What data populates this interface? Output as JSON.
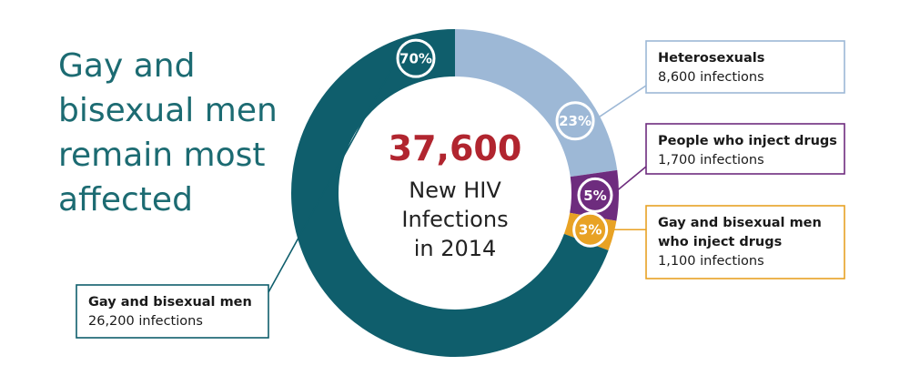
{
  "headline": [
    "Gay and",
    "bisexual men",
    "remain most",
    "affected"
  ],
  "chart_data": {
    "type": "pie",
    "center": {
      "number": "37,600",
      "text": [
        "New HIV",
        "Infections",
        "in 2014"
      ]
    },
    "slices": [
      {
        "percent": 23,
        "percent_label": "23%",
        "title": [
          "Heterosexuals"
        ],
        "infections": 8600,
        "infections_label": "8,600 infections",
        "color": "#9db8d6"
      },
      {
        "percent": 5,
        "percent_label": "5%",
        "title": [
          "People who inject drugs"
        ],
        "infections": 1700,
        "infections_label": "1,700 infections",
        "color": "#6e2c7e"
      },
      {
        "percent": 3,
        "percent_label": "3%",
        "title": [
          "Gay and bisexual men",
          "who inject drugs"
        ],
        "infections": 1100,
        "infections_label": "1,100 infections",
        "color": "#e8a224"
      },
      {
        "percent": 70,
        "percent_label": "70%",
        "title": [
          "Gay and bisexual men"
        ],
        "infections": 26200,
        "infections_label": "26,200 infections",
        "color": "#0f5e6c"
      }
    ]
  }
}
